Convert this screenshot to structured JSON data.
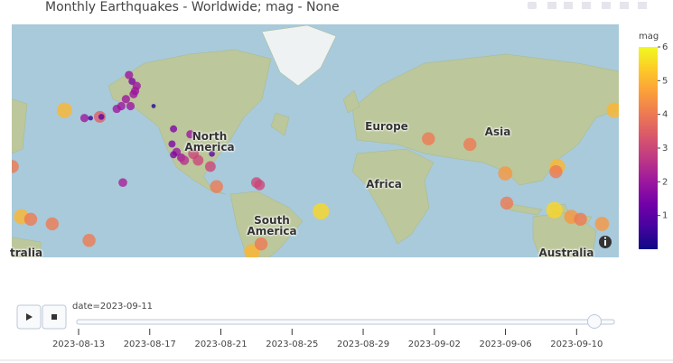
{
  "chart_data": {
    "type": "map",
    "title": "Monthly Earthquakes - Worldwide; mag - None",
    "map_labels": [
      "North America",
      "Europe",
      "Asia",
      "Africa",
      "South America",
      "Australia",
      "tralia"
    ],
    "points": {
      "lon": [
        -188,
        -175,
        -171,
        -165,
        -164,
        -154,
        -151,
        -148,
        -146,
        -144,
        -142,
        -143,
        -141,
        -145,
        -130,
        -150,
        -222,
        -117,
        -118,
        -115,
        -117,
        -112,
        -110,
        -106,
        -104,
        -101,
        -92,
        -93,
        -89,
        -63,
        -61,
        -216,
        -210,
        -196,
        -172,
        -66,
        -60,
        -21,
        49,
        76,
        99,
        100,
        133,
        132,
        131,
        142,
        148,
        162,
        170
      ],
      "lat": [
        55.5,
        52.5,
        52.5,
        53,
        53,
        56,
        57,
        59.4,
        66.5,
        64.8,
        62,
        61,
        63.5,
        57,
        57,
        19.5,
        29,
        48,
        41,
        37,
        35.5,
        34,
        32.5,
        45.6,
        36,
        32.5,
        36,
        29,
        17,
        19.5,
        18,
        -2.4,
        -4,
        -7,
        -17.5,
        -24.5,
        -19.7,
        1.2,
        43.5,
        40.8,
        25,
        6.5,
        29,
        26,
        2,
        -2.4,
        -4,
        -7,
        55.5
      ],
      "mag": [
        5,
        2,
        0.5,
        3.5,
        1,
        2,
        2,
        2,
        2,
        1.5,
        2,
        2,
        2,
        2,
        0.3,
        2.2,
        4,
        1.5,
        1.5,
        2,
        1.5,
        2,
        2.5,
        2,
        3,
        3,
        1,
        3,
        4,
        3,
        3,
        5,
        4,
        4,
        4,
        5,
        4,
        5.5,
        4,
        4,
        4.5,
        4,
        5,
        4,
        5.5,
        4.5,
        4,
        4.5,
        5
      ]
    },
    "colorbar": {
      "title": "mag",
      "ylim": [
        0,
        6
      ],
      "yticks": [
        1,
        2,
        3,
        4,
        5,
        6
      ],
      "colorscale": [
        "#0d0887",
        "#46039f",
        "#7201a8",
        "#9c179e",
        "#bd3786",
        "#d8576b",
        "#ed7953",
        "#fb9f3a",
        "#fdca26",
        "#f0f921"
      ]
    },
    "slider": {
      "current_label": "date=2023-09-11",
      "value": "2023-09-11",
      "xlim": [
        "2023-08-13",
        "2023-09-11"
      ],
      "xticks": [
        "2023-08-13",
        "2023-08-17",
        "2023-08-21",
        "2023-08-25",
        "2023-08-29",
        "2023-09-02",
        "2023-09-06",
        "2023-09-10"
      ]
    }
  }
}
